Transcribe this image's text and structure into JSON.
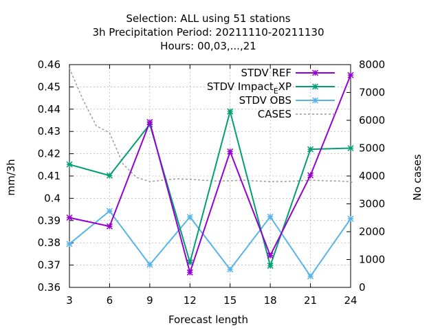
{
  "chart_data": {
    "type": "line",
    "title_lines": [
      "Selection: ALL using    51 stations",
      "3h Precipitation   Period: 20211110-20211130",
      "Hours:  00,03,...,21"
    ],
    "xlabel": "Forecast length",
    "ylabel": "mm/3h",
    "y2label": "No cases",
    "x": [
      3,
      6,
      9,
      12,
      15,
      18,
      21,
      24
    ],
    "xlim": [
      3,
      24
    ],
    "ylim": [
      0.36,
      0.46
    ],
    "y2lim": [
      0,
      8000
    ],
    "x_ticks": [
      "3",
      "6",
      "9",
      "12",
      "15",
      "18",
      "21",
      "24"
    ],
    "y_ticks": [
      "0.36",
      "0.37",
      "0.38",
      "0.39",
      "0.4",
      "0.41",
      "0.42",
      "0.43",
      "0.44",
      "0.45",
      "0.46"
    ],
    "y2_ticks": [
      "0",
      "1000",
      "2000",
      "3000",
      "4000",
      "5000",
      "6000",
      "7000",
      "8000"
    ],
    "grid": true,
    "legend_position": "top-right",
    "series": [
      {
        "name": "STDV REF",
        "color": "#9400d3",
        "axis": "y",
        "marker": "x-star",
        "dashed": false,
        "values": [
          0.3913,
          0.3874,
          0.4342,
          0.3667,
          0.421,
          0.3743,
          0.4103,
          0.4553
        ]
      },
      {
        "name": "STDV Impact_EXP",
        "color": "#009e73",
        "axis": "y",
        "marker": "x-star",
        "dashed": false,
        "values": [
          0.4152,
          0.4102,
          0.4332,
          0.3712,
          0.439,
          0.3697,
          0.422,
          0.4225
        ]
      },
      {
        "name": "STDV OBS",
        "color": "#56b4e9",
        "axis": "y",
        "marker": "x-star",
        "dashed": false,
        "values": [
          0.3795,
          0.3943,
          0.3702,
          0.3916,
          0.3681,
          0.3917,
          0.365,
          0.3908
        ]
      },
      {
        "name": "CASES",
        "color": "#999999",
        "axis": "y2",
        "marker": "none",
        "dashed": true,
        "values": [
          7868,
          6750,
          5800,
          5550,
          4430,
          3950,
          3800,
          3850,
          3900,
          3880,
          3850,
          3820,
          3830,
          3850,
          3820,
          3800,
          3800,
          3820,
          3850,
          3830,
          3820,
          3800,
          3780,
          3700
        ],
        "x": [
          3,
          4,
          5,
          6,
          7,
          8,
          9,
          10,
          11,
          12,
          13,
          14,
          15,
          16,
          17,
          18,
          19,
          20,
          21,
          22,
          23,
          24,
          24.1,
          24.2
        ]
      }
    ]
  }
}
